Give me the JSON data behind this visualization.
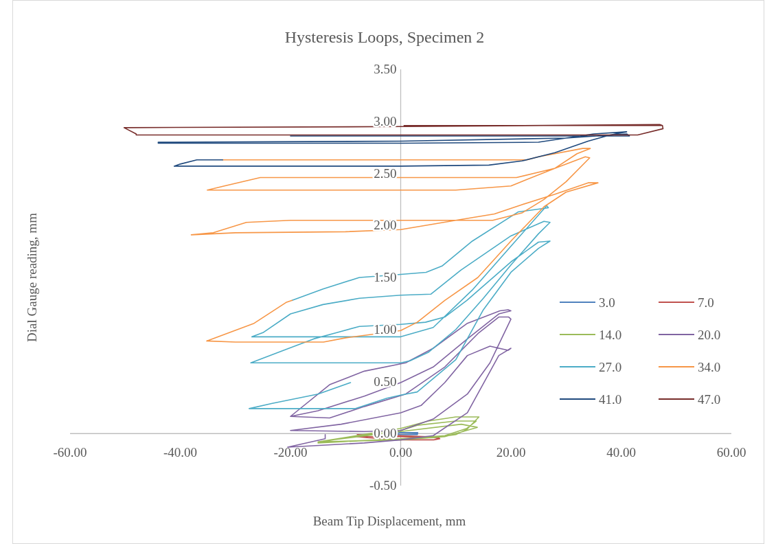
{
  "chart_data": {
    "type": "line",
    "title": "Hysteresis Loops, Specimen 2",
    "xlabel": "Beam Tip Displacement, mm",
    "ylabel": "Dial Gauge reading, mm",
    "xlim": [
      -60,
      60
    ],
    "xticks": [
      {
        "value": -60,
        "label": "-60.00"
      },
      {
        "value": -40,
        "label": "-40.00"
      },
      {
        "value": -20,
        "label": "-20.00"
      },
      {
        "value": 0,
        "label": "0.00"
      },
      {
        "value": 20,
        "label": "20.00"
      },
      {
        "value": 40,
        "label": "40.00"
      },
      {
        "value": 60,
        "label": "60.00"
      }
    ],
    "ylim": [
      -0.5,
      3.5
    ],
    "yticks": [
      {
        "value": -0.5,
        "label": "-0.50"
      },
      {
        "value": 0,
        "label": "0.00"
      },
      {
        "value": 0.5,
        "label": "0.50"
      },
      {
        "value": 1,
        "label": "1.00"
      },
      {
        "value": 1.5,
        "label": "1.50"
      },
      {
        "value": 2,
        "label": "2.00"
      },
      {
        "value": 2.5,
        "label": "2.50"
      },
      {
        "value": 3,
        "label": "3.00"
      },
      {
        "value": 3.5,
        "label": "3.50"
      }
    ],
    "grid": false,
    "legend": "right",
    "marker": "none",
    "line_style": "solid",
    "series": [
      {
        "name": "3.0",
        "color": "#4f81bd",
        "x": [
          -1.2,
          3.1,
          3.0,
          -1.2,
          0,
          3.1
        ],
        "values": [
          0.01,
          0.0,
          -0.01,
          -0.01,
          0.01,
          0.01
        ]
      },
      {
        "name": "7.0",
        "color": "#c0504d",
        "x": [
          -7.9,
          0,
          5,
          7.1,
          6,
          0,
          -6,
          -7.9,
          0,
          7
        ],
        "values": [
          -0.01,
          -0.02,
          -0.03,
          -0.05,
          -0.06,
          -0.06,
          -0.04,
          -0.03,
          -0.03,
          -0.04
        ]
      },
      {
        "name": "14.0",
        "color": "#9bbb59",
        "x": [
          -15,
          0,
          5.9,
          10,
          12,
          14.2,
          10,
          5,
          0,
          -8,
          -15,
          -8,
          0,
          8,
          12,
          13.7,
          10,
          3,
          0,
          -10,
          -14.5,
          0,
          8,
          13.9,
          11,
          0,
          -14
        ],
        "values": [
          -0.09,
          -0.05,
          -0.04,
          -0.01,
          0.04,
          0.16,
          0.16,
          0.12,
          0.05,
          -0.02,
          -0.08,
          -0.07,
          -0.05,
          -0.02,
          0.05,
          0.12,
          0.12,
          0.08,
          0.03,
          -0.04,
          -0.08,
          -0.06,
          -0.03,
          0.06,
          0.09,
          0.02,
          -0.07
        ]
      },
      {
        "name": "20.0",
        "color": "#8064a2",
        "x": [
          -13.7,
          -13.7,
          -20.5,
          -6.6,
          0,
          5.9,
          12.1,
          17.8,
          20,
          19.5,
          16.2,
          12.1,
          8,
          3.7,
          0,
          -10.8,
          -20,
          -6.6,
          0,
          5.9,
          12.1,
          16.2,
          20,
          19.6,
          17.8,
          14.2,
          8,
          0.9,
          -6.6,
          -12.9,
          -20,
          -15,
          -6.6,
          0,
          5.9,
          12.1,
          17.8,
          20,
          19.5,
          18,
          12.1,
          5.9,
          0.9,
          -6.6,
          -12.9,
          -20
        ],
        "values": [
          -0.01,
          -0.05,
          -0.13,
          -0.09,
          -0.06,
          -0.02,
          0.2,
          0.75,
          0.82,
          0.8,
          0.84,
          0.75,
          0.49,
          0.27,
          0.2,
          0.09,
          0.03,
          0.02,
          0.03,
          0.14,
          0.38,
          0.68,
          1.1,
          1.12,
          1.12,
          0.97,
          0.64,
          0.38,
          0.26,
          0.15,
          0.165,
          0.22,
          0.36,
          0.49,
          0.64,
          0.91,
          1.15,
          1.18,
          1.19,
          1.18,
          1.06,
          0.82,
          0.68,
          0.6,
          0.47,
          0.165
        ]
      },
      {
        "name": "27.0",
        "color": "#4bacc6",
        "x": [
          -9.1,
          -15,
          -23.3,
          -27.5,
          -8.3,
          -2.5,
          0,
          3,
          10,
          15,
          20,
          25,
          27.1,
          25,
          20,
          12,
          8,
          4.5,
          0,
          -7.5,
          -11.6,
          -15.8,
          -27.2,
          0,
          1.7,
          5,
          10,
          15,
          20,
          25,
          27.1,
          26,
          20,
          10.9,
          5.5,
          0,
          -7.5,
          -14.1,
          -20,
          -25,
          -27,
          0,
          5.9,
          13,
          20,
          26.5,
          26.8,
          21.3,
          13,
          7.5,
          4.6,
          0,
          -7.5,
          -14.1,
          -19.7
        ],
        "values": [
          0.49,
          0.38,
          0.29,
          0.24,
          0.24,
          0.34,
          0.37,
          0.4,
          0.71,
          1.19,
          1.55,
          1.78,
          1.85,
          1.84,
          1.65,
          1.28,
          1.12,
          1.07,
          1.05,
          1.03,
          0.97,
          0.91,
          0.68,
          0.68,
          0.7,
          0.78,
          1.0,
          1.3,
          1.62,
          1.92,
          2.03,
          2.04,
          1.9,
          1.57,
          1.34,
          1.33,
          1.3,
          1.24,
          1.15,
          0.97,
          0.93,
          0.93,
          1.02,
          1.38,
          1.8,
          2.19,
          2.17,
          2.13,
          1.85,
          1.61,
          1.55,
          1.53,
          1.5,
          1.39,
          1.28
        ]
      },
      {
        "name": "34.0",
        "color": "#f79646",
        "x": [
          -19.7,
          -20.8,
          -26.6,
          -35.2,
          -30,
          -14,
          -10,
          0,
          3,
          8,
          14,
          20,
          26,
          30,
          35.8,
          34,
          28,
          22,
          17,
          10,
          0,
          -10,
          -30,
          -38,
          -34,
          -28,
          -20,
          0,
          16.7,
          22,
          26,
          30,
          34.3,
          33.5,
          28,
          20,
          10,
          0,
          -35.1,
          -32,
          -25.5,
          0,
          21,
          28,
          32,
          34.4,
          33,
          25,
          22.9,
          0,
          -32.3
        ],
        "values": [
          1.28,
          1.26,
          1.06,
          0.89,
          0.88,
          0.88,
          0.92,
          0.99,
          1.07,
          1.28,
          1.5,
          1.85,
          2.18,
          2.32,
          2.41,
          2.41,
          2.3,
          2.2,
          2.11,
          2.05,
          1.96,
          1.94,
          1.93,
          1.91,
          1.93,
          2.03,
          2.05,
          2.05,
          2.05,
          2.12,
          2.25,
          2.42,
          2.65,
          2.66,
          2.55,
          2.38,
          2.34,
          2.34,
          2.34,
          2.38,
          2.46,
          2.46,
          2.46,
          2.55,
          2.69,
          2.74,
          2.74,
          2.66,
          2.63,
          2.63,
          2.63
        ]
      },
      {
        "name": "41.0",
        "color": "#1f497d",
        "x": [
          -32.3,
          -37,
          -40,
          -41.1,
          0,
          16,
          22,
          28,
          34,
          38,
          41,
          35,
          25,
          0,
          -44,
          -44,
          0,
          30,
          41,
          41.5,
          0,
          -20
        ],
        "values": [
          2.63,
          2.63,
          2.59,
          2.57,
          2.57,
          2.58,
          2.62,
          2.7,
          2.81,
          2.87,
          2.9,
          2.88,
          2.8,
          2.79,
          2.79,
          2.8,
          2.81,
          2.84,
          2.88,
          2.86,
          2.86,
          2.86
        ]
      },
      {
        "name": "47.0",
        "color": "#772c2a",
        "x": [
          0.6,
          20,
          47.5,
          47.6,
          43,
          0,
          -48,
          -48,
          -50.2,
          0,
          47,
          47.5
        ],
        "values": [
          2.96,
          2.96,
          2.96,
          2.93,
          2.87,
          2.87,
          2.87,
          2.88,
          2.94,
          2.95,
          2.97,
          2.96
        ]
      }
    ]
  }
}
